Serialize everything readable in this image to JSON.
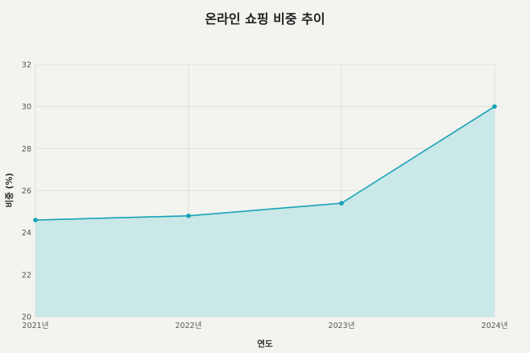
{
  "chart_data": {
    "type": "area",
    "title": "온라인 쇼핑 비중 추이",
    "xlabel": "연도",
    "ylabel": "비중 (%)",
    "categories": [
      "2021년",
      "2022년",
      "2023년",
      "2024년"
    ],
    "values": [
      24.6,
      24.8,
      25.4,
      30.0
    ],
    "ylim": [
      20,
      32
    ],
    "yticks": [
      "20",
      "22",
      "24",
      "26",
      "28",
      "30",
      "32"
    ],
    "grid": true,
    "colors": {
      "line": "#17a2b8",
      "fill": "#c6e7e6",
      "grid": "#dcdcd6",
      "background": "#f3f3ef"
    }
  }
}
